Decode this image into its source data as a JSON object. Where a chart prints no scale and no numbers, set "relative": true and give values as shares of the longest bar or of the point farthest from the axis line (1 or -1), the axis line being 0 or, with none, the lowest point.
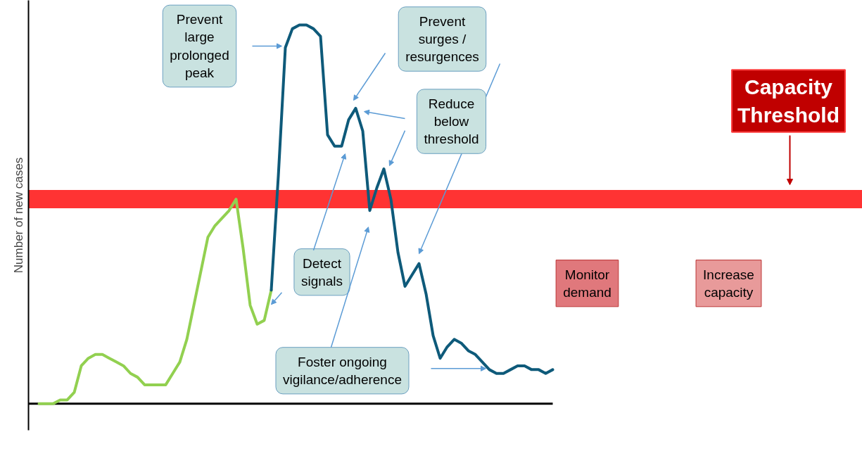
{
  "chart_data": {
    "type": "line",
    "relative": true,
    "ylabel": "Number of new cases",
    "categories": [
      null,
      null,
      null,
      null,
      null,
      null,
      null,
      null,
      null,
      null,
      null,
      null,
      null,
      null,
      null,
      null,
      null,
      null,
      null,
      null,
      null,
      null,
      null,
      null,
      null,
      null,
      null,
      null,
      null,
      null,
      null,
      null,
      null,
      null,
      null,
      null,
      null,
      null,
      null,
      null,
      null,
      null,
      null,
      null,
      null,
      null,
      null,
      null,
      null,
      null,
      null,
      null,
      null,
      null,
      null,
      null,
      null,
      null,
      null,
      null,
      null,
      null,
      null,
      null,
      null,
      null,
      null,
      null,
      null,
      null,
      null,
      null,
      null,
      null
    ],
    "series": [
      {
        "color": "#92d050",
        "values": [
          0,
          0,
          0,
          0.01,
          0.01,
          0.03,
          0.1,
          0.12,
          0.13,
          0.13,
          0.12,
          0.11,
          0.1,
          0.08,
          0.07,
          0.05,
          0.05,
          0.05,
          0.05,
          0.08,
          0.11,
          0.17,
          0.26,
          0.35,
          0.44,
          0.47,
          0.49,
          0.51,
          0.54,
          0.41,
          0.26,
          0.21,
          0.22,
          0.3,
          null,
          null,
          null,
          null,
          null,
          null,
          null,
          null,
          null,
          null,
          null,
          null,
          null,
          null,
          null,
          null,
          null,
          null,
          null,
          null,
          null,
          null,
          null,
          null,
          null,
          null,
          null,
          null,
          null,
          null,
          null,
          null,
          null,
          null,
          null,
          null,
          null,
          null,
          null,
          null
        ]
      },
      {
        "color": "#0e5a7a",
        "values": [
          null,
          null,
          null,
          null,
          null,
          null,
          null,
          null,
          null,
          null,
          null,
          null,
          null,
          null,
          null,
          null,
          null,
          null,
          null,
          null,
          null,
          null,
          null,
          null,
          null,
          null,
          null,
          null,
          null,
          null,
          null,
          null,
          null,
          0.3,
          0.6,
          0.94,
          0.99,
          1.0,
          1.0,
          0.99,
          0.97,
          0.71,
          0.68,
          0.68,
          0.75,
          0.78,
          0.72,
          0.51,
          0.57,
          0.62,
          0.54,
          0.4,
          0.31,
          0.34,
          0.37,
          0.29,
          0.18,
          0.12,
          0.15,
          0.17,
          0.16,
          0.14,
          0.13,
          0.11,
          0.09,
          0.08,
          0.08,
          0.09,
          0.1,
          0.1,
          0.09,
          0.09,
          0.08,
          0.09
        ]
      }
    ],
    "ref_lines": [
      {
        "axis": "y",
        "value": 0.54,
        "label": "Capacity Threshold",
        "color": "#ff0000"
      }
    ],
    "annotations": [
      "Prevent large prolonged peak",
      "Prevent surges / resurgences",
      "Reduce below threshold",
      "Detect signals",
      "Foster ongoing vigilance/adherence",
      "Monitor demand",
      "Increase capacity"
    ]
  }
}
